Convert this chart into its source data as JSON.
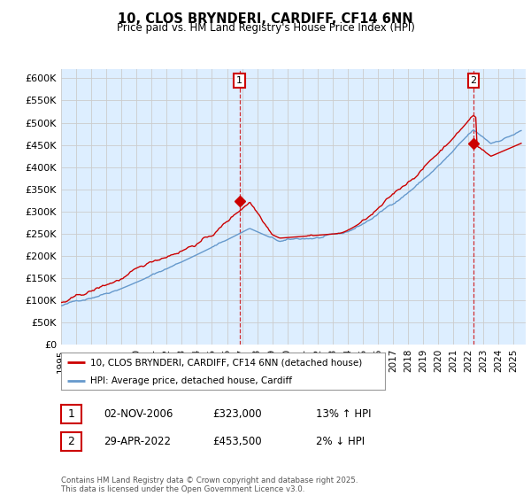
{
  "title": "10, CLOS BRYNDERI, CARDIFF, CF14 6NN",
  "subtitle": "Price paid vs. HM Land Registry's House Price Index (HPI)",
  "ylim": [
    0,
    620000
  ],
  "yticks": [
    0,
    50000,
    100000,
    150000,
    200000,
    250000,
    300000,
    350000,
    400000,
    450000,
    500000,
    550000,
    600000
  ],
  "legend_line1": "10, CLOS BRYNDERI, CARDIFF, CF14 6NN (detached house)",
  "legend_line2": "HPI: Average price, detached house, Cardiff",
  "annotation1_label": "1",
  "annotation1_date": "02-NOV-2006",
  "annotation1_price": "£323,000",
  "annotation1_hpi": "13% ↑ HPI",
  "annotation2_label": "2",
  "annotation2_date": "29-APR-2022",
  "annotation2_price": "£453,500",
  "annotation2_hpi": "2% ↓ HPI",
  "footer": "Contains HM Land Registry data © Crown copyright and database right 2025.\nThis data is licensed under the Open Government Licence v3.0.",
  "red_color": "#cc0000",
  "blue_color": "#6699cc",
  "blue_fill": "#ddeeff",
  "background_color": "#ffffff",
  "grid_color": "#cccccc",
  "sale1_year": 2006.833,
  "sale1_price": 323000,
  "sale2_year": 2022.333,
  "sale2_price": 453500
}
